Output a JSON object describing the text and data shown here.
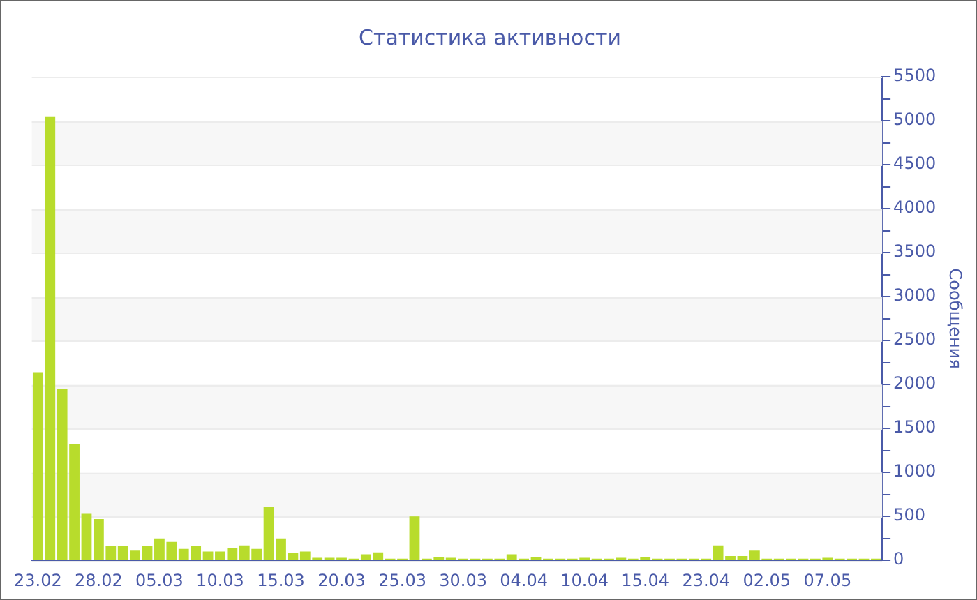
{
  "chart_data": {
    "type": "bar",
    "title": "Статистика активности",
    "ylabel": "Сообщения",
    "categories": [
      "23.02",
      null,
      null,
      null,
      null,
      "28.02",
      null,
      null,
      null,
      null,
      "05.03",
      null,
      null,
      null,
      null,
      "10.03",
      null,
      null,
      null,
      null,
      "15.03",
      null,
      null,
      null,
      null,
      "20.03",
      null,
      null,
      null,
      null,
      "25.03",
      null,
      null,
      null,
      null,
      "30.03",
      null,
      null,
      null,
      null,
      "04.04",
      null,
      null,
      null,
      null,
      "10.04",
      null,
      null,
      null,
      null,
      "15.04",
      null,
      null,
      null,
      null,
      "23.04",
      null,
      null,
      null,
      null,
      "02.05",
      null,
      null,
      null,
      null,
      "07.05",
      null,
      null,
      null,
      null
    ],
    "values": [
      2140,
      5050,
      1950,
      1320,
      530,
      470,
      160,
      160,
      110,
      160,
      250,
      210,
      130,
      160,
      100,
      100,
      140,
      170,
      130,
      610,
      250,
      80,
      100,
      30,
      30,
      30,
      20,
      70,
      90,
      20,
      20,
      500,
      20,
      40,
      30,
      20,
      20,
      20,
      20,
      70,
      20,
      40,
      20,
      20,
      20,
      30,
      20,
      20,
      30,
      20,
      40,
      20,
      20,
      20,
      20,
      20,
      170,
      50,
      50,
      110,
      20,
      20,
      20,
      20,
      20,
      30,
      20,
      20,
      20,
      20
    ],
    "color": "#b8dc2c",
    "ylim": [
      0,
      5500
    ],
    "yticks": [
      0,
      {
        "value": 250,
        "label": null
      },
      500,
      {
        "value": 750,
        "label": null
      },
      1000,
      {
        "value": 1250,
        "label": null
      },
      1500,
      {
        "value": 1750,
        "label": null
      },
      2000,
      {
        "value": 2250,
        "label": null
      },
      2500,
      {
        "value": 2750,
        "label": null
      },
      3000,
      {
        "value": 3250,
        "label": null
      },
      3500,
      {
        "value": 3750,
        "label": null
      },
      4000,
      {
        "value": 4250,
        "label": null
      },
      4500,
      {
        "value": 4750,
        "label": null
      },
      5000,
      {
        "value": 5250,
        "label": null
      },
      5500
    ],
    "grid": "y"
  }
}
